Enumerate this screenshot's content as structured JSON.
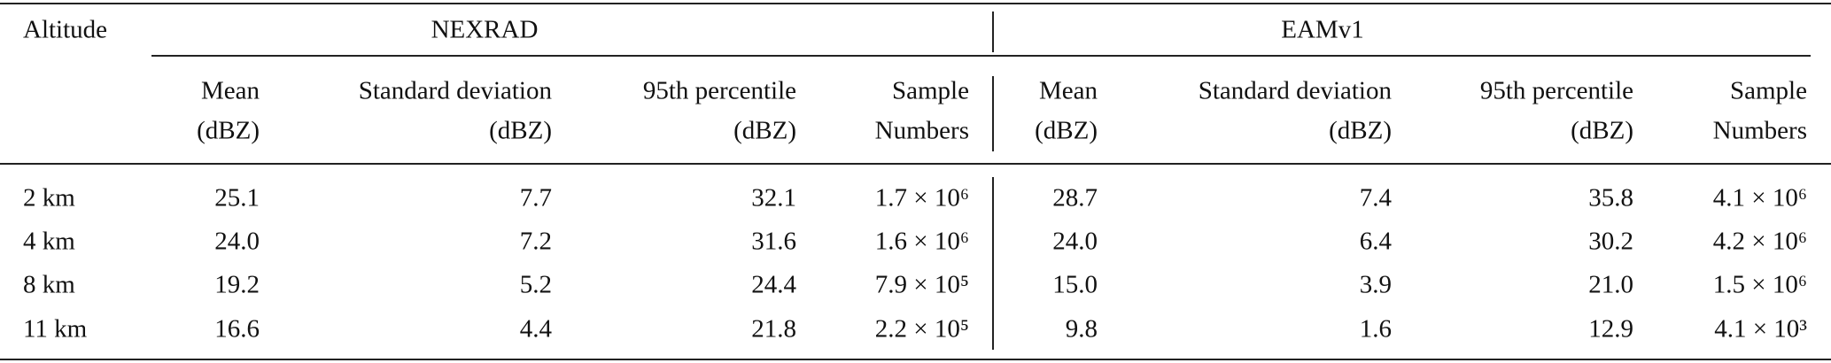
{
  "header": {
    "altitude": "Altitude",
    "groups": [
      "NEXRAD",
      "EAMv1"
    ],
    "columns": [
      [
        "Mean",
        "(dBZ)"
      ],
      [
        "Standard deviation",
        "(dBZ)"
      ],
      [
        "95th percentile",
        "(dBZ)"
      ],
      [
        "Sample",
        "Numbers"
      ]
    ]
  },
  "table": {
    "rows": [
      [
        "2 km",
        "25.1",
        "7.7",
        "32.1",
        "1.7 × 10⁶",
        "28.7",
        "7.4",
        "35.8",
        "4.1 × 10⁶"
      ],
      [
        "4 km",
        "24.0",
        "7.2",
        "31.6",
        "1.6 × 10⁶",
        "24.0",
        "6.4",
        "30.2",
        "4.2 × 10⁶"
      ],
      [
        "8 km",
        "19.2",
        "5.2",
        "24.4",
        "7.9 × 10⁵",
        "15.0",
        "3.9",
        "21.0",
        "1.5 × 10⁶"
      ],
      [
        "11 km",
        "16.6",
        "4.4",
        "21.8",
        "2.2 × 10⁵",
        "9.8",
        "1.6",
        "12.9",
        "4.1 × 10³"
      ]
    ]
  }
}
